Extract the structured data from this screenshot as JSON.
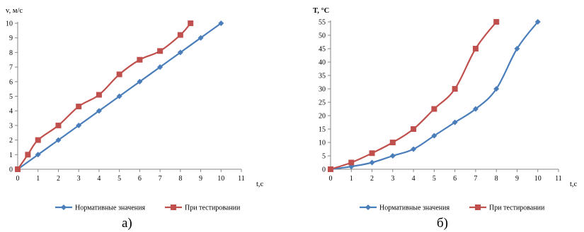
{
  "chart_data": [
    {
      "type": "line",
      "panel_label": "а)",
      "ylabel": "v, м/с",
      "xlabel": "t,c",
      "xlim": [
        0,
        11
      ],
      "ylim": [
        0,
        10
      ],
      "x_ticks": [
        0,
        1,
        2,
        3,
        4,
        5,
        6,
        7,
        8,
        9,
        10,
        11
      ],
      "y_ticks": [
        0,
        1,
        2,
        3,
        4,
        5,
        6,
        7,
        8,
        9,
        10
      ],
      "grid": false,
      "legend_position": "bottom",
      "series": [
        {
          "name": "Нормативные значения",
          "color": "#4a7ebb",
          "marker": "diamond",
          "x": [
            0,
            1,
            2,
            3,
            4,
            5,
            6,
            7,
            8,
            9,
            10
          ],
          "y": [
            0,
            1,
            2,
            3,
            4,
            5,
            6,
            7,
            8,
            9,
            10
          ]
        },
        {
          "name": "При тестировании",
          "color": "#c0504d",
          "marker": "square",
          "x": [
            0,
            0.5,
            1,
            2,
            3,
            4,
            5,
            6,
            7,
            8,
            8.5
          ],
          "y": [
            0,
            1,
            2,
            3,
            4.3,
            5.1,
            6.5,
            7.5,
            8.1,
            9.2,
            10
          ]
        }
      ]
    },
    {
      "type": "line",
      "panel_label": "б)",
      "ylabel": "T, °C",
      "xlabel": "t,c",
      "xlim": [
        0,
        11
      ],
      "ylim": [
        0,
        55
      ],
      "x_ticks": [
        0,
        1,
        2,
        3,
        4,
        5,
        6,
        7,
        8,
        9,
        10,
        11
      ],
      "y_ticks": [
        0,
        5,
        10,
        15,
        20,
        25,
        30,
        35,
        40,
        45,
        50,
        55
      ],
      "grid": false,
      "legend_position": "bottom",
      "series": [
        {
          "name": "Нормативные значения",
          "color": "#4a7ebb",
          "marker": "diamond",
          "x": [
            0,
            1,
            2,
            3,
            4,
            5,
            6,
            7,
            8,
            9,
            10
          ],
          "y": [
            0,
            1,
            2.5,
            5,
            7.5,
            12.5,
            17.5,
            22.5,
            30,
            45,
            55
          ]
        },
        {
          "name": "При тестировании",
          "color": "#c0504d",
          "marker": "square",
          "x": [
            0,
            1,
            2,
            3,
            4,
            5,
            6,
            7,
            8
          ],
          "y": [
            0,
            2.5,
            6,
            10,
            15,
            22.5,
            30,
            45,
            55
          ]
        }
      ]
    }
  ]
}
